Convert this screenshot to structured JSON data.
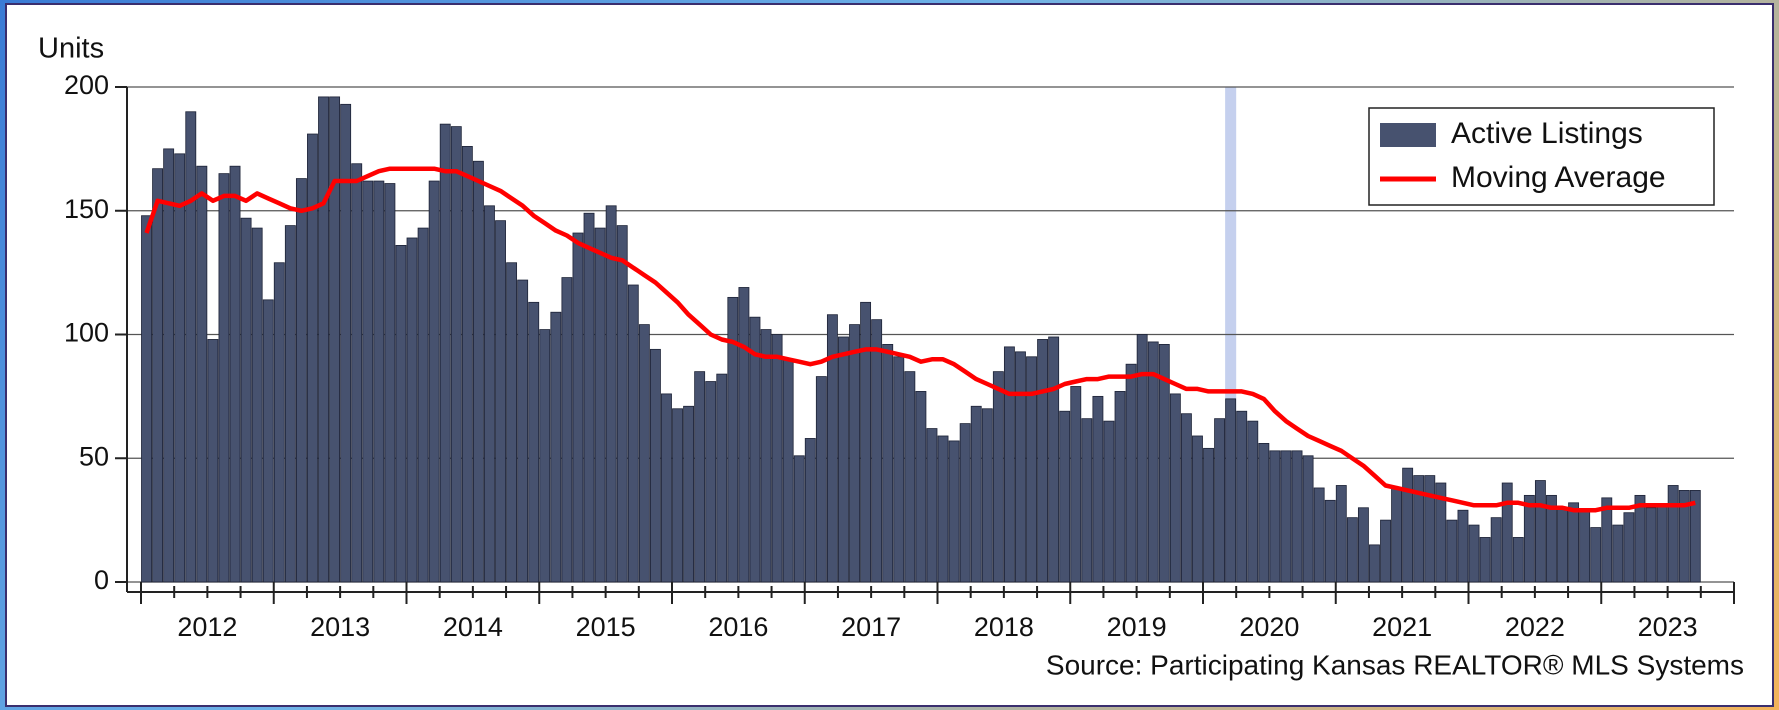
{
  "chart_data": {
    "type": "bar",
    "y_axis_label": "Units",
    "source": "Source: Participating Kansas REALTOR® MLS Systems",
    "year_labels": [
      "2012",
      "2013",
      "2014",
      "2015",
      "2016",
      "2017",
      "2018",
      "2019",
      "2020",
      "2021",
      "2022",
      "2023"
    ],
    "ylim": [
      0,
      200
    ],
    "yticks": [
      0,
      50,
      100,
      150,
      200
    ],
    "grid": true,
    "highlight_index": 98,
    "highlight_color": "#c5d0ee",
    "legend": "top-right",
    "series": [
      {
        "name": "Active Listings",
        "type": "bar",
        "color": "#47526f",
        "values": [
          148,
          167,
          175,
          173,
          190,
          168,
          98,
          165,
          168,
          147,
          143,
          114,
          129,
          144,
          163,
          181,
          196,
          196,
          193,
          169,
          162,
          162,
          161,
          136,
          139,
          143,
          162,
          185,
          184,
          176,
          170,
          152,
          146,
          129,
          122,
          113,
          102,
          109,
          123,
          141,
          149,
          143,
          152,
          144,
          120,
          104,
          94,
          76,
          70,
          71,
          85,
          81,
          84,
          115,
          119,
          107,
          102,
          100,
          90,
          51,
          58,
          83,
          108,
          99,
          104,
          113,
          106,
          96,
          91,
          85,
          77,
          62,
          59,
          57,
          64,
          71,
          70,
          85,
          95,
          93,
          91,
          98,
          99,
          69,
          79,
          66,
          75,
          65,
          77,
          88,
          100,
          97,
          96,
          76,
          68,
          59,
          54,
          66,
          74,
          69,
          65,
          56,
          53,
          53,
          53,
          51,
          38,
          33,
          39,
          26,
          30,
          15,
          25,
          38,
          46,
          43,
          43,
          40,
          25,
          29,
          23,
          18,
          26,
          40,
          18,
          35,
          41,
          35,
          30,
          32,
          29,
          22,
          34,
          23,
          28,
          35,
          30,
          31,
          39,
          37,
          37
        ]
      },
      {
        "name": "Moving Average",
        "type": "line",
        "color": "#ff0000",
        "values": [
          141,
          154,
          153,
          152,
          154,
          157,
          154,
          156,
          156,
          154,
          157,
          155,
          153,
          151,
          150,
          151,
          153,
          162,
          162,
          162,
          164,
          166,
          167,
          167,
          167,
          167,
          167,
          166,
          166,
          164,
          162,
          160,
          158,
          155,
          152,
          148,
          145,
          142,
          140,
          137,
          135,
          133,
          131,
          130,
          127,
          124,
          121,
          117,
          113,
          108,
          104,
          100,
          98,
          97,
          95,
          92,
          91,
          91,
          90,
          89,
          88,
          89,
          91,
          92,
          93,
          94,
          94,
          93,
          92,
          91,
          89,
          90,
          90,
          88,
          85,
          82,
          80,
          78,
          76,
          76,
          76,
          77,
          78,
          80,
          81,
          82,
          82,
          83,
          83,
          83,
          84,
          84,
          82,
          80,
          78,
          78,
          77,
          77,
          77,
          77,
          76,
          74,
          69,
          65,
          62,
          59,
          57,
          55,
          53,
          50,
          47,
          43,
          39,
          38,
          37,
          36,
          35,
          34,
          33,
          32,
          31,
          31,
          31,
          32,
          32,
          31,
          31,
          30,
          30,
          29,
          29,
          29,
          30,
          30,
          30,
          31,
          31,
          31,
          31,
          31,
          32
        ]
      }
    ]
  }
}
